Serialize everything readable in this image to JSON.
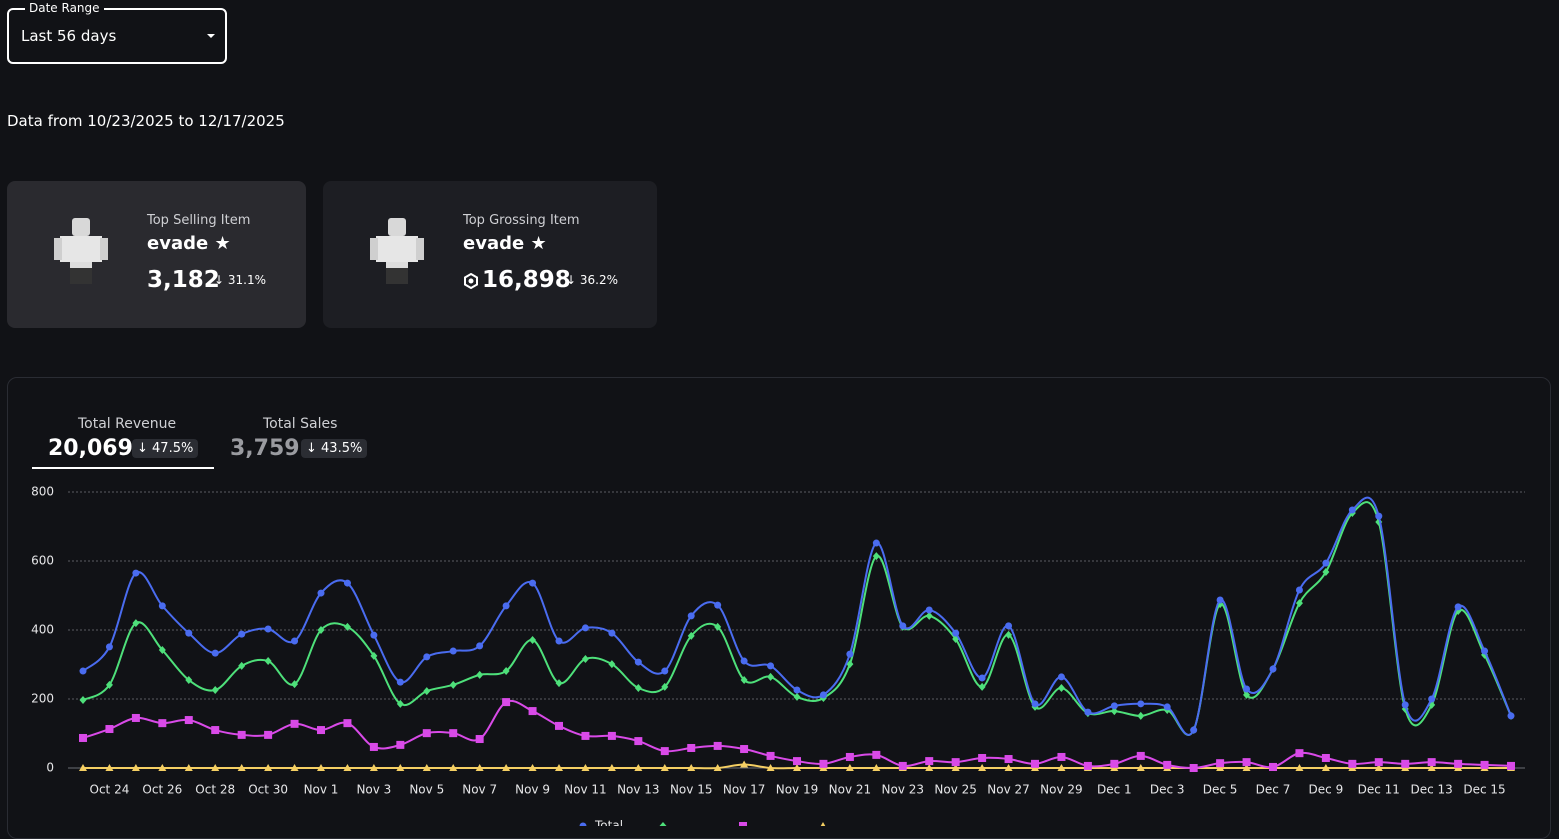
{
  "date_range": {
    "label": "Date Range",
    "value": "Last 56 days"
  },
  "range_text": "Data from 10/23/2025 to 12/17/2025",
  "cards": [
    {
      "title": "Top Selling Item",
      "item": "evade ★",
      "value": "3,182",
      "change": "31.1%"
    },
    {
      "title": "Top Grossing Item",
      "item": "evade ★",
      "value": "16,898",
      "change": "36.2%"
    }
  ],
  "metrics": [
    {
      "label": "Total Revenue",
      "value": "20,069",
      "change": "47.5%"
    },
    {
      "label": "Total Sales",
      "value": "3,759",
      "change": "43.5%"
    }
  ],
  "chart_data": {
    "type": "line",
    "categories": [
      null,
      "Oct 24",
      null,
      "Oct 26",
      null,
      "Oct 28",
      null,
      "Oct 30",
      null,
      "Nov 1",
      null,
      "Nov 3",
      null,
      "Nov 5",
      null,
      "Nov 7",
      null,
      "Nov 9",
      null,
      "Nov 11",
      null,
      "Nov 13",
      null,
      "Nov 15",
      null,
      "Nov 17",
      null,
      "Nov 19",
      null,
      "Nov 21",
      null,
      "Nov 23",
      null,
      "Nov 25",
      null,
      "Nov 27",
      null,
      "Nov 29",
      null,
      "Dec 1",
      null,
      "Dec 3",
      null,
      "Dec 5",
      null,
      "Dec 7",
      null,
      "Dec 9",
      null,
      "Dec 11",
      null,
      "Dec 13",
      null,
      "Dec 15",
      null
    ],
    "ylim": [
      0,
      800
    ],
    "yticks": [
      0,
      200,
      400,
      600,
      800
    ],
    "grid": true,
    "series": [
      {
        "name": "Total",
        "color": "#4a6cf0",
        "marker": "circle",
        "values": [
          281,
          351,
          565,
          470,
          391,
          333,
          388,
          403,
          368,
          507,
          536,
          385,
          249,
          322,
          339,
          354,
          470,
          536,
          368,
          406,
          391,
          307,
          281,
          441,
          472,
          310,
          296,
          226,
          212,
          330,
          652,
          412,
          458,
          391,
          261,
          412,
          186,
          264,
          162,
          180,
          186,
          177,
          110,
          487,
          229,
          287,
          516,
          594,
          748,
          730,
          183,
          200,
          467,
          339,
          151
        ]
      },
      {
        "color": "#4ee07a",
        "marker": "diamond",
        "values": [
          197,
          241,
          420,
          342,
          255,
          226,
          296,
          310,
          243,
          400,
          409,
          325,
          186,
          223,
          241,
          270,
          281,
          371,
          246,
          316,
          301,
          232,
          235,
          383,
          409,
          255,
          264,
          206,
          203,
          301,
          614,
          409,
          441,
          374,
          235,
          386,
          177,
          232,
          159,
          165,
          151,
          168,
          110,
          475,
          212,
          287,
          478,
          568,
          739,
          713,
          171,
          183,
          455,
          328,
          151
        ]
      },
      {
        "color": "#d94ae8",
        "marker": "square",
        "values": [
          87,
          113,
          145,
          130,
          139,
          110,
          96,
          96,
          128,
          110,
          130,
          61,
          67,
          101,
          101,
          84,
          191,
          165,
          122,
          93,
          93,
          78,
          49,
          58,
          64,
          55,
          35,
          20,
          12,
          32,
          38,
          6,
          20,
          17,
          29,
          26,
          12,
          32,
          6,
          12,
          35,
          9,
          0,
          14,
          17,
          3,
          43,
          29,
          12,
          17,
          12,
          17,
          12,
          9,
          6
        ]
      },
      {
        "color": "#f5cf63",
        "marker": "triangle",
        "values": [
          0,
          0,
          0,
          0,
          0,
          0,
          0,
          0,
          0,
          0,
          0,
          0,
          0,
          0,
          0,
          0,
          0,
          0,
          0,
          0,
          0,
          0,
          0,
          0,
          0,
          10,
          0,
          0,
          0,
          0,
          0,
          0,
          0,
          0,
          0,
          0,
          0,
          0,
          0,
          0,
          0,
          0,
          0,
          0,
          0,
          0,
          0,
          0,
          0,
          0,
          0,
          0,
          0,
          0,
          0
        ]
      }
    ]
  }
}
